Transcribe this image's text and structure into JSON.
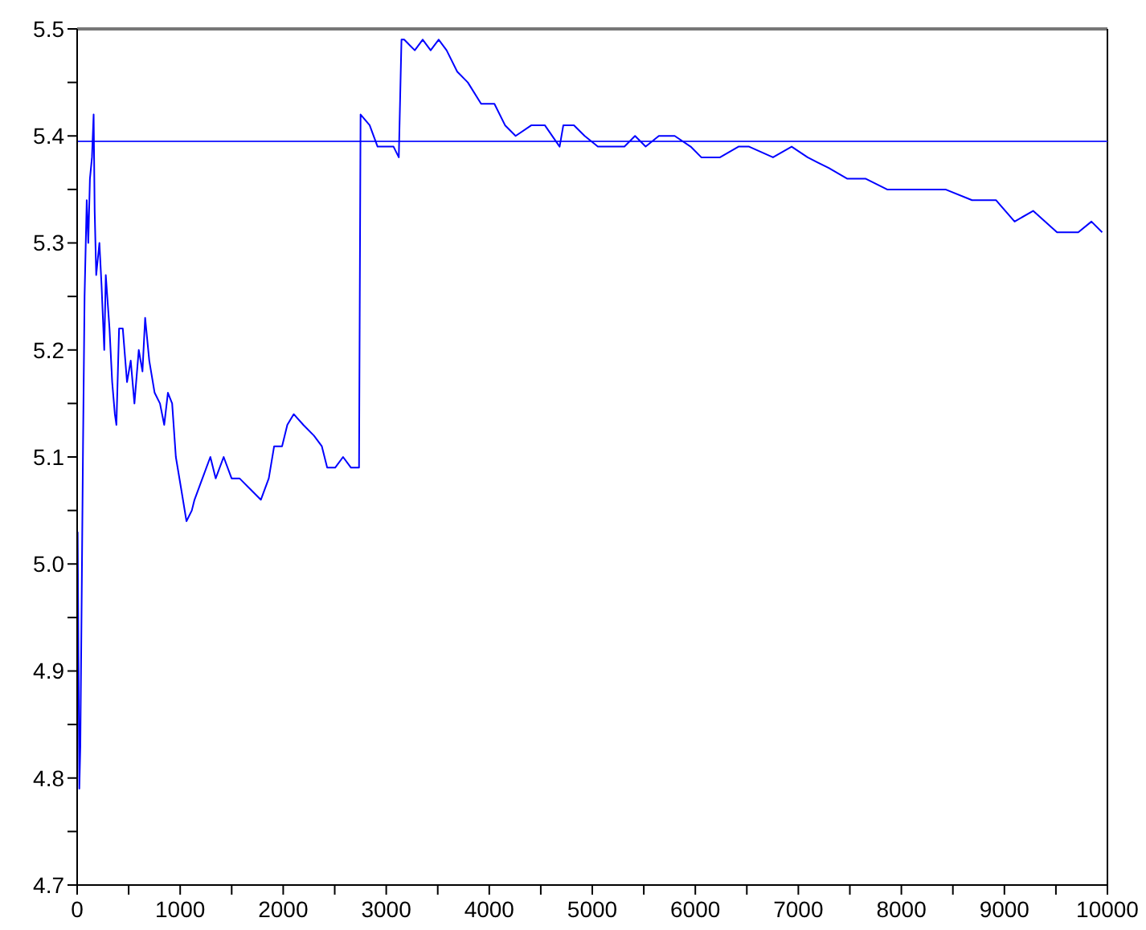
{
  "chart_data": {
    "type": "line",
    "x": [
      5,
      21,
      31,
      46,
      57,
      72,
      93,
      108,
      124,
      144,
      160,
      170,
      185,
      216,
      237,
      263,
      278,
      314,
      340,
      366,
      381,
      407,
      443,
      484,
      520,
      556,
      598,
      634,
      660,
      700,
      752,
      804,
      845,
      881,
      922,
      958,
      1010,
      1061,
      1113,
      1139,
      1216,
      1293,
      1345,
      1422,
      1499,
      1576,
      1680,
      1783,
      1860,
      1912,
      1989,
      2040,
      2102,
      2195,
      2298,
      2375,
      2427,
      2504,
      2581,
      2658,
      2725,
      2736,
      2751,
      2839,
      2916,
      2993,
      3071,
      3122,
      3148,
      3174,
      3277,
      3354,
      3431,
      3509,
      3586,
      3689,
      3792,
      3921,
      4050,
      4153,
      4256,
      4410,
      4539,
      4683,
      4719,
      4822,
      4926,
      5054,
      5157,
      5312,
      5415,
      5518,
      5646,
      5800,
      5955,
      6058,
      6240,
      6419,
      6522,
      6754,
      6935,
      7090,
      7295,
      7476,
      7655,
      7862,
      8068,
      8249,
      8428,
      8686,
      8918,
      9099,
      9279,
      9511,
      9717,
      9845,
      9949
    ],
    "series": [
      {
        "color": "#0000ff",
        "values": [
          5.03,
          4.79,
          4.83,
          4.99,
          5.11,
          5.25,
          5.34,
          5.3,
          5.36,
          5.38,
          5.42,
          5.33,
          5.27,
          5.3,
          5.26,
          5.2,
          5.27,
          5.22,
          5.17,
          5.14,
          5.13,
          5.22,
          5.22,
          5.17,
          5.19,
          5.15,
          5.2,
          5.18,
          5.23,
          5.19,
          5.16,
          5.15,
          5.13,
          5.16,
          5.15,
          5.1,
          5.07,
          5.04,
          5.05,
          5.06,
          5.08,
          5.1,
          5.08,
          5.1,
          5.08,
          5.08,
          5.07,
          5.06,
          5.08,
          5.11,
          5.11,
          5.13,
          5.14,
          5.13,
          5.12,
          5.11,
          5.09,
          5.09,
          5.1,
          5.09,
          5.09,
          5.09,
          5.42,
          5.41,
          5.39,
          5.39,
          5.39,
          5.38,
          5.49,
          5.49,
          5.48,
          5.49,
          5.48,
          5.49,
          5.48,
          5.46,
          5.45,
          5.43,
          5.43,
          5.41,
          5.4,
          5.41,
          5.41,
          5.39,
          5.41,
          5.41,
          5.4,
          5.39,
          5.39,
          5.39,
          5.4,
          5.39,
          5.4,
          5.4,
          5.39,
          5.38,
          5.38,
          5.39,
          5.39,
          5.38,
          5.39,
          5.38,
          5.37,
          5.36,
          5.36,
          5.35,
          5.35,
          5.35,
          5.35,
          5.34,
          5.34,
          5.32,
          5.33,
          5.31,
          5.31,
          5.32,
          5.31
        ]
      }
    ],
    "xlim": [
      0,
      10000
    ],
    "xticks": [
      0,
      {
        "value": 500,
        "label": null
      },
      1000,
      {
        "value": 1500,
        "label": null
      },
      2000,
      {
        "value": 2500,
        "label": null
      },
      3000,
      {
        "value": 3500,
        "label": null
      },
      4000,
      {
        "value": 4500,
        "label": null
      },
      5000,
      {
        "value": 5500,
        "label": null
      },
      6000,
      {
        "value": 6500,
        "label": null
      },
      7000,
      {
        "value": 7500,
        "label": null
      },
      8000,
      {
        "value": 8500,
        "label": null
      },
      9000,
      {
        "value": 9500,
        "label": null
      },
      10000
    ],
    "ylim": [
      4.7,
      5.5
    ],
    "yticks": [
      {
        "value": 4.7,
        "label": "4.7"
      },
      {
        "value": 4.75,
        "label": null
      },
      {
        "value": 4.8,
        "label": "4.8"
      },
      {
        "value": 4.85,
        "label": null
      },
      {
        "value": 4.9,
        "label": "4.9"
      },
      {
        "value": 4.95,
        "label": null
      },
      {
        "value": 5.0,
        "label": "5.0"
      },
      {
        "value": 5.05,
        "label": null
      },
      {
        "value": 5.1,
        "label": "5.1"
      },
      {
        "value": 5.15,
        "label": null
      },
      {
        "value": 5.2,
        "label": "5.2"
      },
      {
        "value": 5.25,
        "label": null
      },
      {
        "value": 5.3,
        "label": "5.3"
      },
      {
        "value": 5.35,
        "label": null
      },
      {
        "value": 5.4,
        "label": "5.4"
      },
      {
        "value": 5.45,
        "label": null
      },
      {
        "value": 5.5,
        "label": "5.5"
      }
    ],
    "ref_lines": [
      {
        "axis": "y",
        "value": 5.395,
        "color": "#2b2bff"
      }
    ],
    "grid": false,
    "marker": "none",
    "line_style": "solid"
  }
}
